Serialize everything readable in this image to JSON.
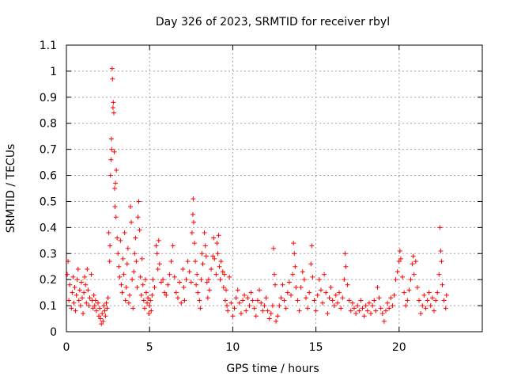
{
  "chart_data": {
    "type": "scatter",
    "title": "Day 326 of 2023, SRMTID for receiver rbyl",
    "xlabel": "GPS time / hours",
    "ylabel": "SRMTID / TECUs",
    "xlim": [
      0,
      25
    ],
    "ylim": [
      0,
      1.1
    ],
    "xticks": [
      0,
      5,
      10,
      15,
      20
    ],
    "yticks": [
      0,
      0.1,
      0.2,
      0.3,
      0.4,
      0.5,
      0.6,
      0.7,
      0.8,
      0.9,
      1,
      1.1
    ],
    "grid": true,
    "marker": "+",
    "color": "#ff0000",
    "series": [
      {
        "name": "rbyl",
        "points": [
          [
            0.05,
            0.22
          ],
          [
            0.1,
            0.27
          ],
          [
            0.15,
            0.12
          ],
          [
            0.2,
            0.18
          ],
          [
            0.3,
            0.09
          ],
          [
            0.35,
            0.15
          ],
          [
            0.4,
            0.21
          ],
          [
            0.45,
            0.11
          ],
          [
            0.5,
            0.17
          ],
          [
            0.55,
            0.08
          ],
          [
            0.6,
            0.14
          ],
          [
            0.65,
            0.2
          ],
          [
            0.7,
            0.24
          ],
          [
            0.75,
            0.12
          ],
          [
            0.8,
            0.16
          ],
          [
            0.85,
            0.1
          ],
          [
            0.9,
            0.19
          ],
          [
            0.95,
            0.13
          ],
          [
            1.0,
            0.07
          ],
          [
            1.05,
            0.15
          ],
          [
            1.1,
            0.21
          ],
          [
            1.15,
            0.18
          ],
          [
            1.2,
            0.11
          ],
          [
            1.25,
            0.24
          ],
          [
            1.3,
            0.16
          ],
          [
            1.35,
            0.1
          ],
          [
            1.4,
            0.13
          ],
          [
            1.5,
            0.22
          ],
          [
            1.55,
            0.12
          ],
          [
            1.6,
            0.09
          ],
          [
            1.65,
            0.14
          ],
          [
            1.7,
            0.1
          ],
          [
            1.75,
            0.12
          ],
          [
            1.8,
            0.08
          ],
          [
            1.9,
            0.11
          ],
          [
            1.95,
            0.06
          ],
          [
            2.0,
            0.09
          ],
          [
            2.05,
            0.05
          ],
          [
            2.1,
            0.03
          ],
          [
            2.15,
            0.07
          ],
          [
            2.2,
            0.04
          ],
          [
            2.25,
            0.1
          ],
          [
            2.3,
            0.08
          ],
          [
            2.35,
            0.06
          ],
          [
            2.4,
            0.11
          ],
          [
            2.45,
            0.09
          ],
          [
            2.5,
            0.13
          ],
          [
            2.55,
            0.38
          ],
          [
            2.6,
            0.27
          ],
          [
            2.62,
            0.33
          ],
          [
            2.65,
            0.6
          ],
          [
            2.68,
            0.66
          ],
          [
            2.7,
            0.74
          ],
          [
            2.72,
            0.7
          ],
          [
            2.75,
            1.01
          ],
          [
            2.77,
            0.97
          ],
          [
            2.8,
            0.86
          ],
          [
            2.82,
            0.88
          ],
          [
            2.85,
            0.84
          ],
          [
            2.88,
            0.69
          ],
          [
            2.9,
            0.55
          ],
          [
            2.92,
            0.48
          ],
          [
            2.95,
            0.57
          ],
          [
            2.98,
            0.44
          ],
          [
            3.0,
            0.62
          ],
          [
            3.05,
            0.36
          ],
          [
            3.1,
            0.3
          ],
          [
            3.15,
            0.25
          ],
          [
            3.2,
            0.21
          ],
          [
            3.25,
            0.35
          ],
          [
            3.3,
            0.18
          ],
          [
            3.35,
            0.15
          ],
          [
            3.4,
            0.28
          ],
          [
            3.45,
            0.22
          ],
          [
            3.5,
            0.38
          ],
          [
            3.55,
            0.12
          ],
          [
            3.6,
            0.17
          ],
          [
            3.65,
            0.26
          ],
          [
            3.7,
            0.32
          ],
          [
            3.75,
            0.11
          ],
          [
            3.8,
            0.14
          ],
          [
            3.85,
            0.48
          ],
          [
            3.9,
            0.42
          ],
          [
            3.95,
            0.2
          ],
          [
            4.0,
            0.09
          ],
          [
            4.05,
            0.23
          ],
          [
            4.1,
            0.3
          ],
          [
            4.15,
            0.36
          ],
          [
            4.2,
            0.27
          ],
          [
            4.25,
            0.17
          ],
          [
            4.3,
            0.44
          ],
          [
            4.35,
            0.5
          ],
          [
            4.4,
            0.39
          ],
          [
            4.45,
            0.21
          ],
          [
            4.5,
            0.14
          ],
          [
            4.55,
            0.28
          ],
          [
            4.6,
            0.18
          ],
          [
            4.65,
            0.12
          ],
          [
            4.7,
            0.09
          ],
          [
            4.75,
            0.2
          ],
          [
            4.8,
            0.15
          ],
          [
            4.85,
            0.11
          ],
          [
            4.9,
            0.13
          ],
          [
            4.95,
            0.07
          ],
          [
            5.0,
            0.1
          ],
          [
            5.05,
            0.12
          ],
          [
            5.1,
            0.08
          ],
          [
            5.15,
            0.14
          ],
          [
            5.2,
            0.2
          ],
          [
            5.3,
            0.17
          ],
          [
            5.4,
            0.33
          ],
          [
            5.45,
            0.3
          ],
          [
            5.5,
            0.24
          ],
          [
            5.55,
            0.35
          ],
          [
            5.6,
            0.26
          ],
          [
            5.7,
            0.19
          ],
          [
            5.8,
            0.2
          ],
          [
            5.9,
            0.15
          ],
          [
            6.0,
            0.14
          ],
          [
            6.1,
            0.18
          ],
          [
            6.2,
            0.22
          ],
          [
            6.3,
            0.27
          ],
          [
            6.4,
            0.33
          ],
          [
            6.5,
            0.21
          ],
          [
            6.6,
            0.15
          ],
          [
            6.7,
            0.13
          ],
          [
            6.8,
            0.19
          ],
          [
            6.9,
            0.11
          ],
          [
            7.0,
            0.24
          ],
          [
            7.05,
            0.17
          ],
          [
            7.1,
            0.12
          ],
          [
            7.2,
            0.2
          ],
          [
            7.3,
            0.27
          ],
          [
            7.4,
            0.23
          ],
          [
            7.5,
            0.19
          ],
          [
            7.55,
            0.38
          ],
          [
            7.6,
            0.45
          ],
          [
            7.62,
            0.51
          ],
          [
            7.65,
            0.42
          ],
          [
            7.7,
            0.34
          ],
          [
            7.75,
            0.27
          ],
          [
            7.8,
            0.18
          ],
          [
            7.85,
            0.22
          ],
          [
            7.9,
            0.15
          ],
          [
            8.0,
            0.12
          ],
          [
            8.05,
            0.09
          ],
          [
            8.1,
            0.2
          ],
          [
            8.15,
            0.3
          ],
          [
            8.2,
            0.26
          ],
          [
            8.3,
            0.38
          ],
          [
            8.35,
            0.33
          ],
          [
            8.4,
            0.29
          ],
          [
            8.45,
            0.19
          ],
          [
            8.5,
            0.13
          ],
          [
            8.55,
            0.2
          ],
          [
            8.6,
            0.16
          ],
          [
            8.7,
            0.24
          ],
          [
            8.8,
            0.29
          ],
          [
            8.85,
            0.36
          ],
          [
            8.9,
            0.28
          ],
          [
            9.0,
            0.22
          ],
          [
            9.05,
            0.34
          ],
          [
            9.1,
            0.3
          ],
          [
            9.15,
            0.37
          ],
          [
            9.2,
            0.25
          ],
          [
            9.25,
            0.2
          ],
          [
            9.3,
            0.27
          ],
          [
            9.4,
            0.23
          ],
          [
            9.45,
            0.17
          ],
          [
            9.5,
            0.22
          ],
          [
            9.55,
            0.12
          ],
          [
            9.6,
            0.16
          ],
          [
            9.65,
            0.1
          ],
          [
            9.7,
            0.08
          ],
          [
            9.8,
            0.21
          ],
          [
            9.9,
            0.11
          ],
          [
            10.0,
            0.06
          ],
          [
            10.1,
            0.09
          ],
          [
            10.2,
            0.13
          ],
          [
            10.3,
            0.16
          ],
          [
            10.4,
            0.11
          ],
          [
            10.5,
            0.07
          ],
          [
            10.6,
            0.12
          ],
          [
            10.7,
            0.14
          ],
          [
            10.8,
            0.08
          ],
          [
            10.9,
            0.13
          ],
          [
            11.0,
            0.1
          ],
          [
            11.1,
            0.15
          ],
          [
            11.2,
            0.12
          ],
          [
            11.3,
            0.09
          ],
          [
            11.4,
            0.06
          ],
          [
            11.5,
            0.12
          ],
          [
            11.6,
            0.16
          ],
          [
            11.7,
            0.11
          ],
          [
            11.8,
            0.08
          ],
          [
            11.9,
            0.1
          ],
          [
            12.0,
            0.13
          ],
          [
            12.1,
            0.08
          ],
          [
            12.2,
            0.05
          ],
          [
            12.3,
            0.07
          ],
          [
            12.4,
            0.1
          ],
          [
            12.45,
            0.32
          ],
          [
            12.5,
            0.22
          ],
          [
            12.55,
            0.18
          ],
          [
            12.6,
            0.04
          ],
          [
            12.7,
            0.06
          ],
          [
            12.8,
            0.1
          ],
          [
            12.9,
            0.13
          ],
          [
            13.0,
            0.18
          ],
          [
            13.1,
            0.12
          ],
          [
            13.2,
            0.09
          ],
          [
            13.3,
            0.15
          ],
          [
            13.4,
            0.19
          ],
          [
            13.5,
            0.14
          ],
          [
            13.6,
            0.22
          ],
          [
            13.65,
            0.34
          ],
          [
            13.7,
            0.3
          ],
          [
            13.75,
            0.25
          ],
          [
            13.8,
            0.17
          ],
          [
            13.9,
            0.12
          ],
          [
            14.0,
            0.08
          ],
          [
            14.1,
            0.17
          ],
          [
            14.2,
            0.23
          ],
          [
            14.3,
            0.2
          ],
          [
            14.4,
            0.13
          ],
          [
            14.5,
            0.09
          ],
          [
            14.6,
            0.15
          ],
          [
            14.7,
            0.26
          ],
          [
            14.75,
            0.33
          ],
          [
            14.8,
            0.21
          ],
          [
            14.9,
            0.12
          ],
          [
            15.0,
            0.08
          ],
          [
            15.1,
            0.14
          ],
          [
            15.2,
            0.2
          ],
          [
            15.3,
            0.16
          ],
          [
            15.4,
            0.11
          ],
          [
            15.5,
            0.22
          ],
          [
            15.6,
            0.15
          ],
          [
            15.7,
            0.07
          ],
          [
            15.8,
            0.13
          ],
          [
            15.9,
            0.17
          ],
          [
            16.0,
            0.12
          ],
          [
            16.1,
            0.1
          ],
          [
            16.2,
            0.14
          ],
          [
            16.3,
            0.11
          ],
          [
            16.4,
            0.15
          ],
          [
            16.5,
            0.09
          ],
          [
            16.6,
            0.13
          ],
          [
            16.7,
            0.2
          ],
          [
            16.75,
            0.3
          ],
          [
            16.8,
            0.25
          ],
          [
            16.9,
            0.18
          ],
          [
            17.0,
            0.12
          ],
          [
            17.1,
            0.08
          ],
          [
            17.2,
            0.11
          ],
          [
            17.3,
            0.09
          ],
          [
            17.4,
            0.07
          ],
          [
            17.5,
            0.1
          ],
          [
            17.6,
            0.08
          ],
          [
            17.7,
            0.12
          ],
          [
            17.8,
            0.09
          ],
          [
            17.9,
            0.06
          ],
          [
            18.0,
            0.1
          ],
          [
            18.1,
            0.08
          ],
          [
            18.2,
            0.11
          ],
          [
            18.3,
            0.07
          ],
          [
            18.4,
            0.1
          ],
          [
            18.5,
            0.12
          ],
          [
            18.6,
            0.08
          ],
          [
            18.7,
            0.17
          ],
          [
            18.8,
            0.13
          ],
          [
            18.9,
            0.09
          ],
          [
            19.0,
            0.07
          ],
          [
            19.1,
            0.04
          ],
          [
            19.2,
            0.08
          ],
          [
            19.3,
            0.11
          ],
          [
            19.4,
            0.09
          ],
          [
            19.5,
            0.13
          ],
          [
            19.6,
            0.1
          ],
          [
            19.7,
            0.14
          ],
          [
            19.8,
            0.2
          ],
          [
            19.9,
            0.23
          ],
          [
            20.0,
            0.27
          ],
          [
            20.05,
            0.31
          ],
          [
            20.1,
            0.28
          ],
          [
            20.2,
            0.21
          ],
          [
            20.3,
            0.15
          ],
          [
            20.4,
            0.1
          ],
          [
            20.5,
            0.12
          ],
          [
            20.6,
            0.16
          ],
          [
            20.7,
            0.2
          ],
          [
            20.8,
            0.26
          ],
          [
            20.85,
            0.29
          ],
          [
            20.9,
            0.22
          ],
          [
            21.0,
            0.27
          ],
          [
            21.1,
            0.17
          ],
          [
            21.2,
            0.12
          ],
          [
            21.3,
            0.07
          ],
          [
            21.4,
            0.1
          ],
          [
            21.5,
            0.14
          ],
          [
            21.6,
            0.09
          ],
          [
            21.7,
            0.12
          ],
          [
            21.8,
            0.15
          ],
          [
            21.9,
            0.1
          ],
          [
            22.0,
            0.13
          ],
          [
            22.1,
            0.08
          ],
          [
            22.2,
            0.12
          ],
          [
            22.3,
            0.15
          ],
          [
            22.4,
            0.22
          ],
          [
            22.45,
            0.4
          ],
          [
            22.5,
            0.31
          ],
          [
            22.55,
            0.27
          ],
          [
            22.6,
            0.18
          ],
          [
            22.7,
            0.12
          ],
          [
            22.8,
            0.09
          ],
          [
            22.85,
            0.14
          ]
        ]
      }
    ]
  }
}
